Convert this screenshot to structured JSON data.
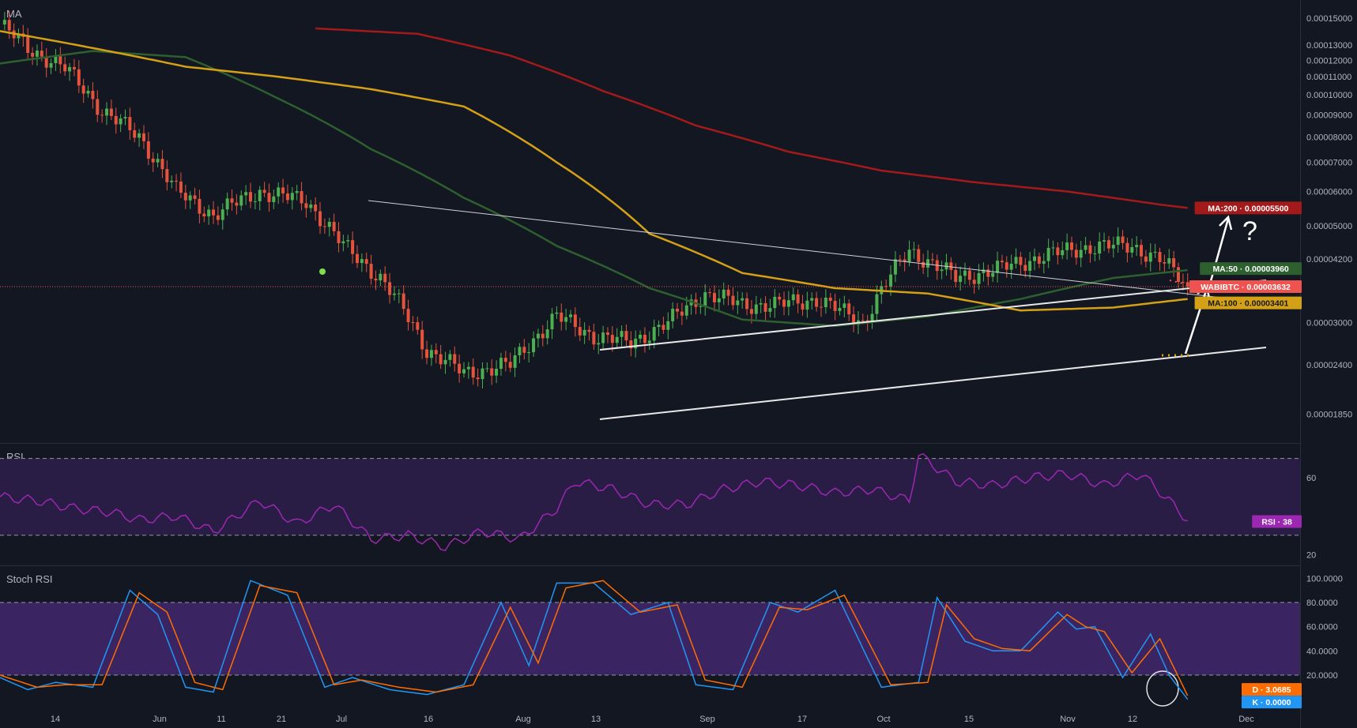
{
  "panes": {
    "price_label": "MA",
    "rsi_label": "RSI",
    "stoch_label": "Stoch RSI"
  },
  "annotation": {
    "question_mark": "?"
  },
  "colors": {
    "background": "#131722",
    "up_candle": "#26a69a",
    "down_candle": "#ef5350",
    "ma50": "#2e5f2e",
    "ma100": "#d4a015",
    "ma200": "#a31a1a",
    "rsi_line": "#9c27b0",
    "rsi_band": "#2a1d45",
    "stoch_k": "#2196f3",
    "stoch_d": "#ff6d00",
    "stoch_band": "#4a2a78",
    "trendline": "#e0e0e0",
    "price_line": "#ef5350"
  },
  "chart_data": [
    {
      "type": "candlestick",
      "pane": "MA",
      "x_axis": {
        "tick_labels": [
          "14",
          "Jun",
          "11",
          "21",
          "Jul",
          "16",
          "Aug",
          "13",
          "Sep",
          "17",
          "Oct",
          "15",
          "Nov",
          "12",
          "Dec"
        ]
      },
      "y_axis": {
        "scale": "log",
        "range": [
          1.65e-05,
          0.000165
        ],
        "tick_labels": [
          "0.00015000",
          "0.00013000",
          "0.00012000",
          "0.00011000",
          "0.00010000",
          "0.00009000",
          "0.00008000",
          "0.00007000",
          "0.00006000",
          "0.00005000",
          "0.00004200",
          "0.00003000",
          "0.00002400",
          "0.00001850"
        ]
      },
      "close_path": {
        "day_index": [
          0,
          6,
          14,
          22,
          30,
          38,
          46,
          56,
          66,
          74,
          82,
          92,
          100,
          110,
          120,
          128,
          136,
          144,
          152,
          160,
          168,
          176,
          186,
          196,
          206,
          216,
          226,
          236,
          244,
          250,
          256
        ],
        "close": [
          0.000145,
          0.000128,
          0.000115,
          9.2e-05,
          8e-05,
          6e-05,
          5.3e-05,
          6e-05,
          5.7e-05,
          4.5e-05,
          3.8e-05,
          2.6e-05,
          2.3e-05,
          2.4e-05,
          3.1e-05,
          2.8e-05,
          2.7e-05,
          3e-05,
          3.5e-05,
          3.3e-05,
          3.3e-05,
          3.4e-05,
          3e-05,
          4.4e-05,
          3.8e-05,
          4e-05,
          4.3e-05,
          4.5e-05,
          4.5e-05,
          4.2e-05,
          3.63e-05
        ]
      },
      "moving_averages": [
        {
          "name": "MA:50",
          "last_value_label": "0.00003960",
          "day_index": [
            0,
            20,
            40,
            60,
            80,
            100,
            120,
            140,
            160,
            180,
            200,
            220,
            240,
            256
          ],
          "values": [
            0.000118,
            0.000126,
            0.000122,
            9.8e-05,
            7.5e-05,
            5.8e-05,
            4.5e-05,
            3.6e-05,
            3.05e-05,
            2.95e-05,
            3.1e-05,
            3.4e-05,
            3.8e-05,
            3.96e-05
          ]
        },
        {
          "name": "MA:100",
          "last_value_label": "0.00003401",
          "day_index": [
            0,
            20,
            40,
            60,
            80,
            100,
            120,
            140,
            160,
            180,
            200,
            220,
            240,
            256
          ],
          "values": [
            0.00014,
            0.000128,
            0.000116,
            0.00011,
            0.000103,
            9.4e-05,
            7e-05,
            4.8e-05,
            3.9e-05,
            3.6e-05,
            3.5e-05,
            3.2e-05,
            3.25e-05,
            3.4e-05
          ]
        },
        {
          "name": "MA:200",
          "last_value_label": "0.00005500",
          "day_index": [
            68,
            90,
            110,
            130,
            150,
            170,
            190,
            210,
            230,
            250,
            256
          ],
          "values": [
            0.000142,
            0.000138,
            0.000123,
            0.000102,
            8.5e-05,
            7.4e-05,
            6.7e-05,
            6.3e-05,
            6e-05,
            5.6e-05,
            5.5e-05
          ]
        }
      ],
      "last_price": {
        "name": "WABIBTC",
        "value_label": "0.00003632"
      }
    },
    {
      "type": "line",
      "pane": "RSI",
      "y_axis": {
        "range": [
          16,
          76
        ],
        "tick_labels": [
          "60",
          "20"
        ]
      },
      "band": [
        30,
        70
      ],
      "series": [
        {
          "name": "RSI",
          "last_value_label": "38",
          "day_index": [
            0,
            8,
            16,
            24,
            30,
            38,
            46,
            56,
            64,
            72,
            80,
            88,
            96,
            104,
            112,
            120,
            124,
            132,
            140,
            148,
            156,
            164,
            172,
            180,
            188,
            196,
            198,
            206,
            214,
            222,
            230,
            238,
            246,
            252,
            256
          ],
          "values": [
            50,
            48,
            44,
            42,
            38,
            40,
            32,
            48,
            36,
            46,
            28,
            30,
            24,
            32,
            28,
            44,
            58,
            54,
            46,
            46,
            54,
            58,
            56,
            52,
            54,
            48,
            72,
            58,
            56,
            60,
            62,
            56,
            62,
            48,
            38
          ]
        }
      ]
    },
    {
      "type": "line",
      "pane": "Stoch RSI",
      "y_axis": {
        "range": [
          -8,
          108
        ],
        "tick_labels": [
          "100.0000",
          "80.0000",
          "60.0000",
          "40.0000",
          "20.0000"
        ]
      },
      "band": [
        20,
        80
      ],
      "series": [
        {
          "name": "K",
          "last_value_label": "0.0000",
          "day_index": [
            0,
            6,
            12,
            20,
            28,
            34,
            40,
            46,
            54,
            62,
            70,
            76,
            84,
            92,
            100,
            108,
            114,
            120,
            128,
            136,
            144,
            150,
            158,
            166,
            172,
            180,
            190,
            198,
            202,
            208,
            214,
            220,
            228,
            232,
            236,
            242,
            248,
            252,
            256
          ],
          "values": [
            18,
            8,
            14,
            10,
            90,
            70,
            10,
            6,
            98,
            86,
            10,
            18,
            8,
            4,
            12,
            80,
            28,
            96,
            96,
            70,
            80,
            12,
            8,
            80,
            72,
            90,
            10,
            14,
            84,
            48,
            40,
            40,
            72,
            58,
            60,
            18,
            54,
            20,
            0
          ]
        },
        {
          "name": "D",
          "last_value_label": "3.0685",
          "day_index": [
            0,
            8,
            14,
            22,
            30,
            36,
            42,
            48,
            56,
            64,
            72,
            78,
            86,
            94,
            102,
            110,
            116,
            122,
            130,
            138,
            146,
            152,
            160,
            168,
            174,
            182,
            192,
            200,
            204,
            210,
            216,
            222,
            230,
            234,
            238,
            244,
            250,
            256
          ],
          "values": [
            20,
            10,
            12,
            12,
            88,
            72,
            14,
            8,
            94,
            88,
            12,
            16,
            10,
            6,
            12,
            76,
            30,
            92,
            98,
            72,
            78,
            16,
            10,
            76,
            74,
            86,
            12,
            14,
            78,
            50,
            42,
            40,
            70,
            60,
            56,
            22,
            50,
            3
          ]
        }
      ]
    }
  ]
}
